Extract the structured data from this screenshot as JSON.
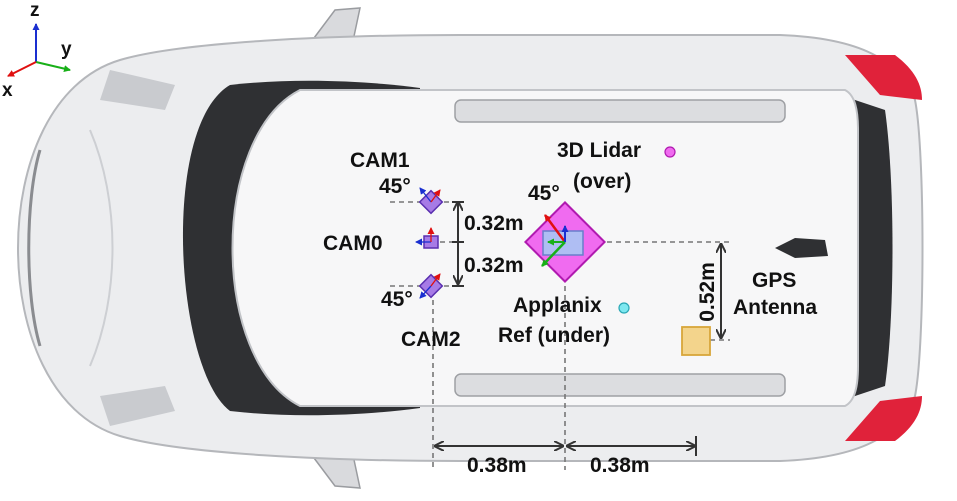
{
  "axes": {
    "z_label": "z",
    "y_label": "y",
    "x_label": "x",
    "colors": {
      "z": "#1a2fd0",
      "y": "#22b52a",
      "x": "#d81e1e"
    }
  },
  "sensors": {
    "cam1": "CAM1",
    "cam0": "CAM0",
    "cam2": "CAM2",
    "lidar_line1": "3D Lidar",
    "lidar_line2": "(over)",
    "applanix_line1": "Applanix",
    "applanix_line2": "Ref (under)",
    "gps_line1": "GPS",
    "gps_line2": "Antenna"
  },
  "angles": {
    "cam1_angle": "45°",
    "cam2_angle": "45°",
    "lidar_angle": "45°"
  },
  "dimensions": {
    "cam_spacing_top": "0.32m",
    "cam_spacing_bottom": "0.32m",
    "gps_offset": "0.52m",
    "cam_to_ref": "0.38m",
    "ref_to_gps": "0.38m"
  },
  "colors": {
    "lidar_fill": "#f06bf0",
    "lidar_marker": "#f06bf0",
    "applanix_marker": "#7ee8f0",
    "gps_fill": "#f3d48c",
    "camera_fill": "#a77be6",
    "car_body": "#ecedef",
    "roof": "#f7f7f8",
    "glass": "#2f3033"
  }
}
